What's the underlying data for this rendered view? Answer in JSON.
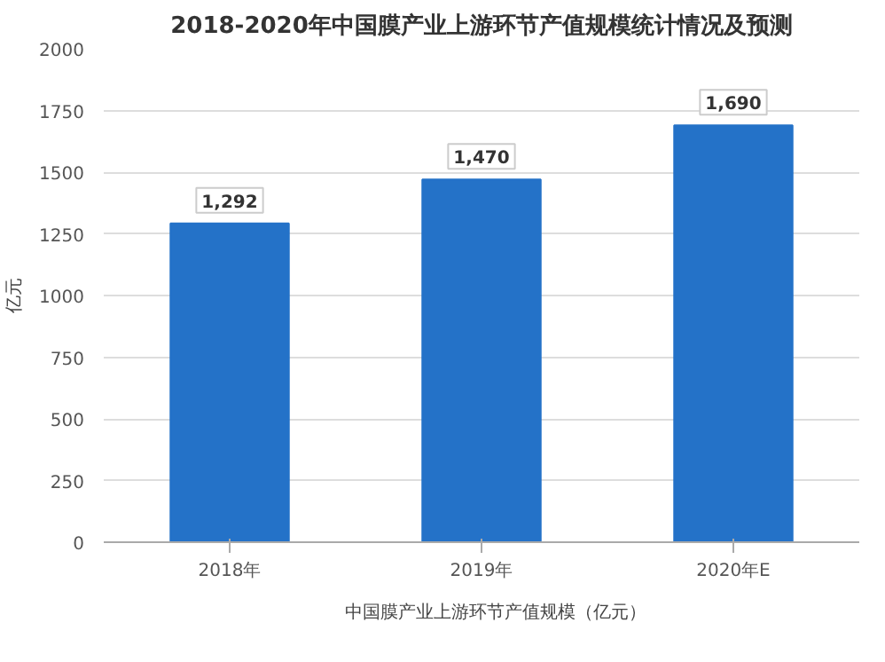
{
  "chart_data": {
    "type": "bar",
    "title": "2018-2020年中国膜产业上游环节产值规模统计情况及预测",
    "ylabel": "亿元",
    "categories": [
      "2018年",
      "2019年",
      "2020年E"
    ],
    "series": [
      {
        "name": "中国膜产业上游环节产值规模（亿元）",
        "color": "#2472c8",
        "values": [
          1292,
          1470,
          1690
        ]
      }
    ],
    "value_labels": [
      "1,292",
      "1,470",
      "1,690"
    ],
    "ylim": [
      0,
      2000
    ],
    "yticks": [
      0,
      250,
      500,
      750,
      1000,
      1250,
      1500,
      1750,
      2000
    ],
    "grid": "y",
    "legend": "bottom"
  }
}
